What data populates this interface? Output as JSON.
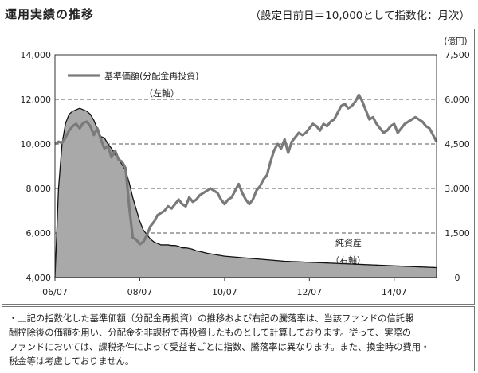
{
  "header": {
    "title": "運用実績の推移",
    "subtitle": "（設定日前日＝10,000として指数化：月次）"
  },
  "chart_data": {
    "type": "line",
    "x_tick_labels": [
      "06/07",
      "08/07",
      "10/07",
      "12/07",
      "14/07"
    ],
    "left_axis": {
      "ticks": [
        "4,000",
        "6,000",
        "8,000",
        "10,000",
        "12,000",
        "14,000"
      ],
      "ylim": [
        4000,
        14000
      ]
    },
    "right_axis": {
      "unit": "(億円)",
      "ticks": [
        "0",
        "1,500",
        "3,000",
        "4,500",
        "6,000",
        "7,500"
      ],
      "ylim": [
        0,
        7500
      ]
    },
    "grid": "horizontal dashed",
    "legend": {
      "label": "基準価額(分配金再投資)",
      "axis_note": "（左軸）",
      "placement": "top-left"
    },
    "area_label": {
      "label": "純資産",
      "axis_note": "（右軸）"
    },
    "months_since_start": [
      0,
      1,
      2,
      3,
      4,
      5,
      6,
      7,
      8,
      9,
      10,
      11,
      12,
      13,
      14,
      15,
      16,
      17,
      18,
      19,
      20,
      21,
      22,
      23,
      24,
      25,
      26,
      27,
      28,
      29,
      30,
      31,
      32,
      33,
      34,
      35,
      36,
      37,
      38,
      39,
      40,
      41,
      42,
      43,
      44,
      45,
      46,
      47,
      48,
      49,
      50,
      51,
      52,
      53,
      54,
      55,
      56,
      57,
      58,
      59,
      60,
      61,
      62,
      63,
      64,
      65,
      66,
      67,
      68,
      69,
      70,
      71,
      72,
      73,
      74,
      75,
      76,
      77,
      78,
      79,
      80,
      81,
      82,
      83,
      84,
      85,
      86,
      87,
      88,
      89,
      90,
      91,
      92,
      93,
      94,
      95,
      96,
      97,
      98,
      99,
      100,
      101,
      102,
      103,
      104,
      105,
      106,
      107,
      108
    ],
    "series": [
      {
        "name": "基準価額(分配金再投資)",
        "axis": "left",
        "values": [
          10000,
          10100,
          10050,
          10300,
          10600,
          10800,
          10900,
          10700,
          10950,
          11000,
          10800,
          10400,
          10700,
          10200,
          9800,
          9900,
          9400,
          9700,
          9300,
          9200,
          8900,
          7200,
          5800,
          5700,
          5500,
          5600,
          5900,
          6300,
          6500,
          6800,
          6900,
          7000,
          7200,
          7100,
          7300,
          7500,
          7300,
          7200,
          7600,
          7400,
          7500,
          7700,
          7800,
          7900,
          8000,
          7900,
          7800,
          7500,
          7300,
          7500,
          7600,
          7900,
          8200,
          7800,
          7500,
          7300,
          7500,
          7900,
          8100,
          8400,
          8600,
          9200,
          9700,
          10000,
          9800,
          10200,
          9600,
          10100,
          10300,
          10500,
          10400,
          10500,
          10700,
          10900,
          10800,
          10600,
          10900,
          10800,
          11000,
          11100,
          11400,
          11700,
          11800,
          11600,
          11700,
          11900,
          12200,
          11900,
          11500,
          11100,
          11200,
          10900,
          10700,
          10500,
          10600,
          10800,
          10900,
          10500,
          10700,
          10900,
          11000,
          11100,
          11200,
          11100,
          11000,
          10800,
          10700,
          10400,
          10100
        ]
      },
      {
        "name": "純資産",
        "axis": "right",
        "values": [
          0,
          3000,
          4500,
          5200,
          5500,
          5600,
          5650,
          5700,
          5650,
          5600,
          5500,
          5300,
          5000,
          4750,
          4700,
          4500,
          4350,
          4150,
          4000,
          3800,
          3600,
          3200,
          2700,
          2300,
          1900,
          1600,
          1450,
          1300,
          1200,
          1150,
          1100,
          1100,
          1100,
          1080,
          1080,
          1050,
          1000,
          1000,
          980,
          950,
          900,
          880,
          850,
          820,
          800,
          780,
          760,
          740,
          720,
          710,
          700,
          690,
          680,
          670,
          660,
          650,
          640,
          630,
          620,
          610,
          600,
          590,
          580,
          570,
          560,
          550,
          545,
          540,
          535,
          530,
          525,
          520,
          515,
          510,
          505,
          500,
          495,
          490,
          485,
          480,
          475,
          470,
          465,
          460,
          455,
          450,
          445,
          440,
          435,
          430,
          425,
          420,
          415,
          410,
          405,
          400,
          395,
          390,
          385,
          380,
          375,
          370,
          365,
          360,
          355,
          350,
          345,
          340,
          335
        ]
      }
    ]
  },
  "note": {
    "lines": [
      "・上記の指数化した基準価額（分配金再投資）の推移および右記の騰落率は、当該ファンドの信託報",
      "酬控除後の価額を用い、分配金を非課税で再投資したものとして計算しております。従って、実際の",
      "ファンドにおいては、課税条件によって受益者ごとに指数、騰落率は異なります。また、換金時の費用・",
      "税金等は考慮しておりません。"
    ]
  },
  "colors": {
    "nav_line": "#7a7a7a",
    "area_fill": "#a9a9a9",
    "area_stroke": "#111111",
    "grid": "#555555"
  }
}
